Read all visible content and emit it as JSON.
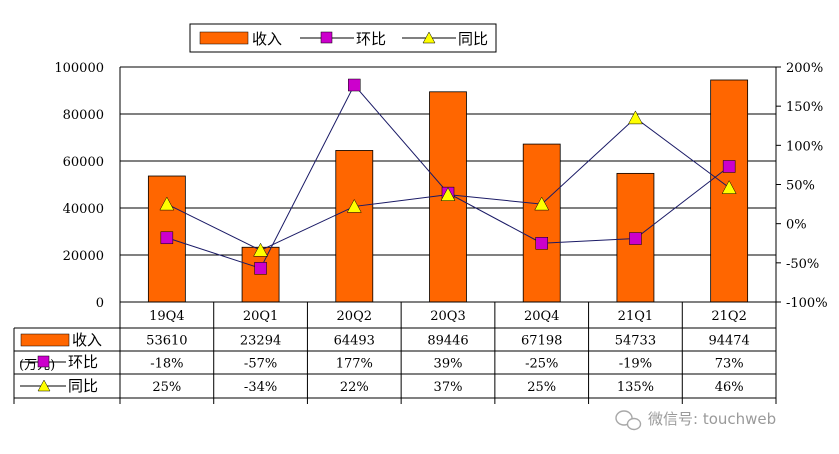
{
  "chart_data": {
    "type": "bar",
    "categories": [
      "19Q4",
      "20Q1",
      "20Q2",
      "20Q3",
      "20Q4",
      "21Q1",
      "21Q2"
    ],
    "series": [
      {
        "name": "收入",
        "type": "bar",
        "axis": "left",
        "color": "#ff6600",
        "values": [
          53610,
          23294,
          64493,
          89446,
          67198,
          54733,
          94474
        ]
      },
      {
        "name": "环比",
        "type": "line",
        "axis": "right",
        "color": "#cc00cc",
        "marker": "square",
        "line_color": "#1a1a66",
        "values": [
          -18,
          -57,
          177,
          39,
          -25,
          -19,
          73
        ]
      },
      {
        "name": "同比",
        "type": "line",
        "axis": "right",
        "color": "#ffff00",
        "marker": "triangle",
        "line_color": "#1a1a66",
        "values": [
          25,
          -34,
          22,
          37,
          25,
          135,
          46
        ]
      }
    ],
    "ylim_left": [
      0,
      100000
    ],
    "yticks_left": [
      "0",
      "20000",
      "40000",
      "60000",
      "80000",
      "100000"
    ],
    "ylim_right": [
      -100,
      200
    ],
    "yticks_right": [
      "-100%",
      "-50%",
      "0%",
      "50%",
      "100%",
      "150%",
      "200%"
    ],
    "table_rows": [
      {
        "label": "收入",
        "cells": [
          "53610",
          "23294",
          "64493",
          "89446",
          "67198",
          "54733",
          "94474"
        ]
      },
      {
        "label": "环比",
        "cells": [
          "-18%",
          "-57%",
          "177%",
          "39%",
          "-25%",
          "-19%",
          "73%"
        ]
      },
      {
        "label": "同比",
        "cells": [
          "25%",
          "-34%",
          "22%",
          "37%",
          "25%",
          "135%",
          "46%"
        ]
      }
    ],
    "unit_label": "(万元)",
    "grid": true,
    "legend_position": "top"
  },
  "watermark": "微信号: touchweb"
}
